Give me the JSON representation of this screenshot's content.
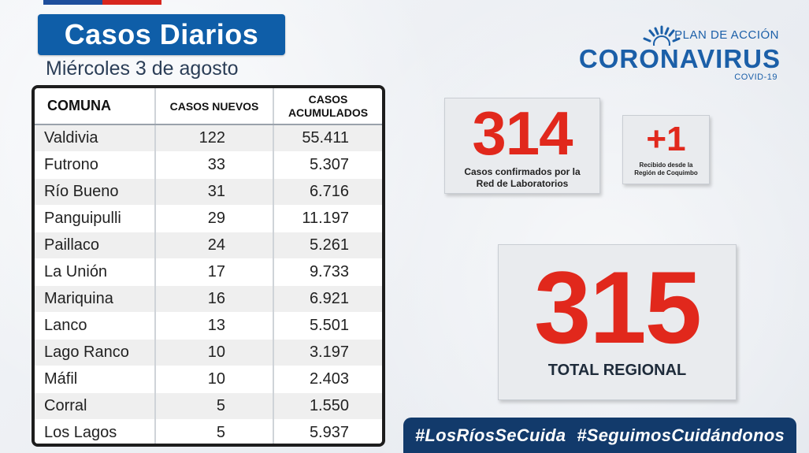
{
  "header": {
    "title": "Casos Diarios",
    "subtitle": "Miércoles 3 de agosto"
  },
  "brand": {
    "plan": "PLAN DE ACCIÓN",
    "main": "CORONAVIRUS",
    "sub": "COVID-19",
    "color": "#1b5fa8"
  },
  "table": {
    "headers": {
      "comuna": "COMUNA",
      "nuevos": "CASOS NUEVOS",
      "acumulados_1": "CASOS",
      "acumulados_2": "ACUMULADOS"
    },
    "rows": [
      {
        "comuna": "Valdivia",
        "nuevos": "122",
        "acumulados": "55.411"
      },
      {
        "comuna": "Futrono",
        "nuevos": "33",
        "acumulados": "5.307"
      },
      {
        "comuna": "Río Bueno",
        "nuevos": "31",
        "acumulados": "6.716"
      },
      {
        "comuna": "Panguipulli",
        "nuevos": "29",
        "acumulados": "11.197"
      },
      {
        "comuna": "Paillaco",
        "nuevos": "24",
        "acumulados": "5.261"
      },
      {
        "comuna": "La Unión",
        "nuevos": "17",
        "acumulados": "9.733"
      },
      {
        "comuna": "Mariquina",
        "nuevos": "16",
        "acumulados": "6.921"
      },
      {
        "comuna": "Lanco",
        "nuevos": "13",
        "acumulados": "5.501"
      },
      {
        "comuna": "Lago Ranco",
        "nuevos": "10",
        "acumulados": "3.197"
      },
      {
        "comuna": "Máfil",
        "nuevos": "10",
        "acumulados": "2.403"
      },
      {
        "comuna": "Corral",
        "nuevos": "5",
        "acumulados": "1.550"
      },
      {
        "comuna": "Los Lagos",
        "nuevos": "5",
        "acumulados": "5.937"
      }
    ]
  },
  "cards": {
    "lab": {
      "value": "314",
      "caption_1": "Casos confirmados por la",
      "caption_2": "Red de Laboratorios"
    },
    "other": {
      "value": "+1",
      "caption_1": "Recibido desde la",
      "caption_2": "Región de Coquimbo"
    },
    "total": {
      "value": "315",
      "caption": "TOTAL REGIONAL"
    }
  },
  "footer": {
    "hashtag_1": "#LosRíosSeCuida",
    "hashtag_2": "#SeguimosCuidándonos"
  },
  "colors": {
    "accent_red": "#e1281c",
    "title_blue": "#0f5ea8",
    "footer_navy": "#123a6b"
  }
}
